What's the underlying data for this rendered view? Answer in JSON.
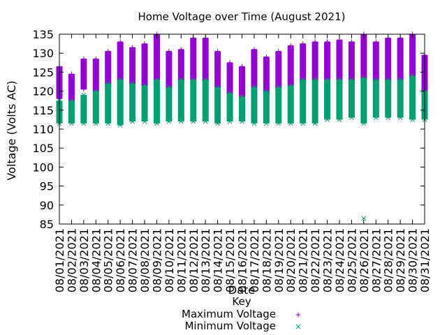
{
  "chart_data": {
    "type": "scatter",
    "title": "Home Voltage over Time (August 2021)",
    "xlabel": "Date",
    "ylabel": "Voltage (Volts AC)",
    "ylim": [
      85,
      135
    ],
    "yticks": [
      85,
      90,
      95,
      100,
      105,
      110,
      115,
      120,
      125,
      130,
      135
    ],
    "grid": false,
    "legend": {
      "title": "Key",
      "placement": "bottom-center"
    },
    "categories": [
      "08/01/2021",
      "08/02/2021",
      "08/03/2021",
      "08/04/2021",
      "08/05/2021",
      "08/06/2021",
      "08/07/2021",
      "08/08/2021",
      "08/09/2021",
      "08/10/2021",
      "08/11/2021",
      "08/12/2021",
      "08/13/2021",
      "08/14/2021",
      "08/15/2021",
      "08/16/2021",
      "08/17/2021",
      "08/18/2021",
      "08/19/2021",
      "08/20/2021",
      "08/21/2021",
      "08/22/2021",
      "08/23/2021",
      "08/24/2021",
      "08/25/2021",
      "08/26/2021",
      "08/27/2021",
      "08/28/2021",
      "08/29/2021",
      "08/30/2021",
      "08/31/2021"
    ],
    "series": [
      {
        "name": "Maximum Voltage",
        "color": "#9400d3",
        "marker": "plus",
        "range_low": [
          118,
          117.5,
          120.5,
          120,
          121,
          122.5,
          122,
          121.5,
          123,
          120.5,
          122,
          123,
          122.5,
          121,
          119,
          118.5,
          121,
          119.5,
          120.5,
          121.5,
          122,
          122.5,
          123,
          123,
          122.5,
          123,
          122.5,
          122.5,
          123,
          123.5,
          120
        ],
        "range_high": [
          126.5,
          124.5,
          128.5,
          128.5,
          130.5,
          133,
          131.5,
          132.5,
          135,
          130.5,
          131,
          134,
          134,
          130.5,
          127.5,
          126.5,
          131,
          129,
          130.5,
          132,
          132.5,
          133,
          133,
          133.5,
          133,
          135,
          133,
          134,
          134,
          135,
          129.5
        ]
      },
      {
        "name": "Minimum Voltage",
        "color": "#009e73",
        "marker": "cross",
        "range_low": [
          111.5,
          111.5,
          111.5,
          111.5,
          111.5,
          111,
          112,
          112,
          111.5,
          112,
          112,
          112,
          112,
          111.5,
          112,
          112,
          111.5,
          111.5,
          111.5,
          111.5,
          111.5,
          111.5,
          112.5,
          112.5,
          113,
          86.5,
          113,
          113,
          113,
          112.5,
          112.5
        ],
        "range_high": [
          117.5,
          117.5,
          119,
          120,
          122,
          123,
          122,
          121.5,
          123,
          121,
          123,
          123,
          123,
          121,
          119.5,
          118.5,
          121,
          120,
          121,
          121.5,
          123,
          123,
          123,
          123,
          123,
          123.5,
          123,
          123,
          123,
          124,
          120
        ]
      }
    ]
  }
}
